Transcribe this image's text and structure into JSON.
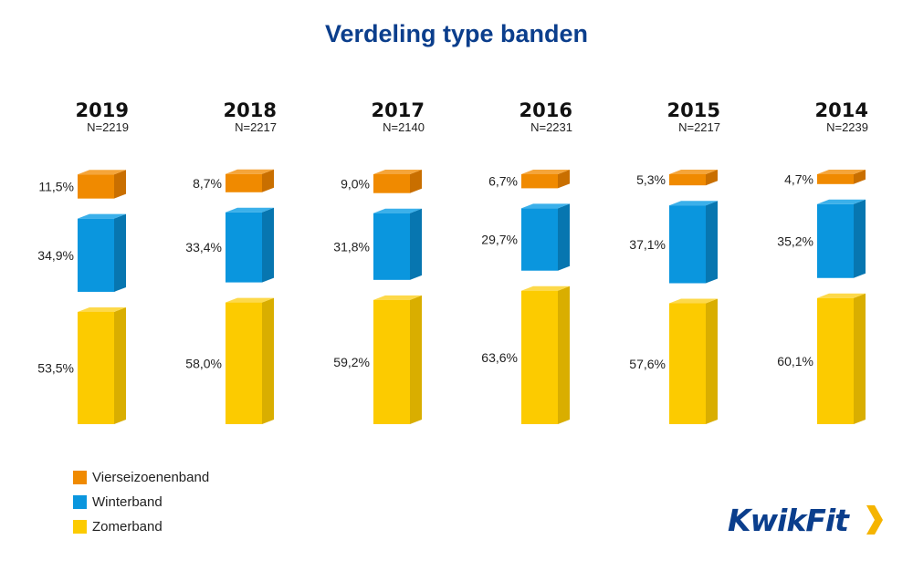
{
  "title": "Verdeling type banden",
  "chart_data": {
    "type": "bar",
    "stacked": true,
    "categories": [
      "2019",
      "2018",
      "2017",
      "2016",
      "2015",
      "2014"
    ],
    "sample_sizes": [
      "N=2219",
      "N=2217",
      "N=2140",
      "N=2231",
      "N=2217",
      "N=2239"
    ],
    "series": [
      {
        "name": "Vierseizoenenband",
        "color": "#f08a00",
        "side": "#c96f00",
        "top": "#f5a53a",
        "values": [
          11.5,
          8.7,
          9.0,
          6.7,
          5.3,
          4.7
        ],
        "labels": [
          "11,5%",
          "8,7%",
          "9,0%",
          "6,7%",
          "5,3%",
          "4,7%"
        ]
      },
      {
        "name": "Winterband",
        "color": "#0a96de",
        "side": "#0776b0",
        "top": "#3bb0ea",
        "values": [
          34.9,
          33.4,
          31.8,
          29.7,
          37.1,
          35.2
        ],
        "labels": [
          "34,9%",
          "33,4%",
          "31,8%",
          "29,7%",
          "37,1%",
          "35,2%"
        ]
      },
      {
        "name": "Zomerband",
        "color": "#fccb00",
        "side": "#d9ae00",
        "top": "#fdd94a",
        "values": [
          53.5,
          58.0,
          59.2,
          63.6,
          57.6,
          60.1
        ],
        "labels": [
          "53,5%",
          "58,0%",
          "59,2%",
          "63,6%",
          "57,6%",
          "60,1%"
        ]
      }
    ]
  },
  "legend": {
    "items": [
      {
        "label": "Vierseizoenenband",
        "color": "#f08a00"
      },
      {
        "label": "Winterband",
        "color": "#0a96de"
      },
      {
        "label": "Zomerband",
        "color": "#fccb00"
      }
    ]
  },
  "logo": {
    "text": "KwikFit",
    "color": "#0b3e8c",
    "accent": "#f5b400"
  }
}
